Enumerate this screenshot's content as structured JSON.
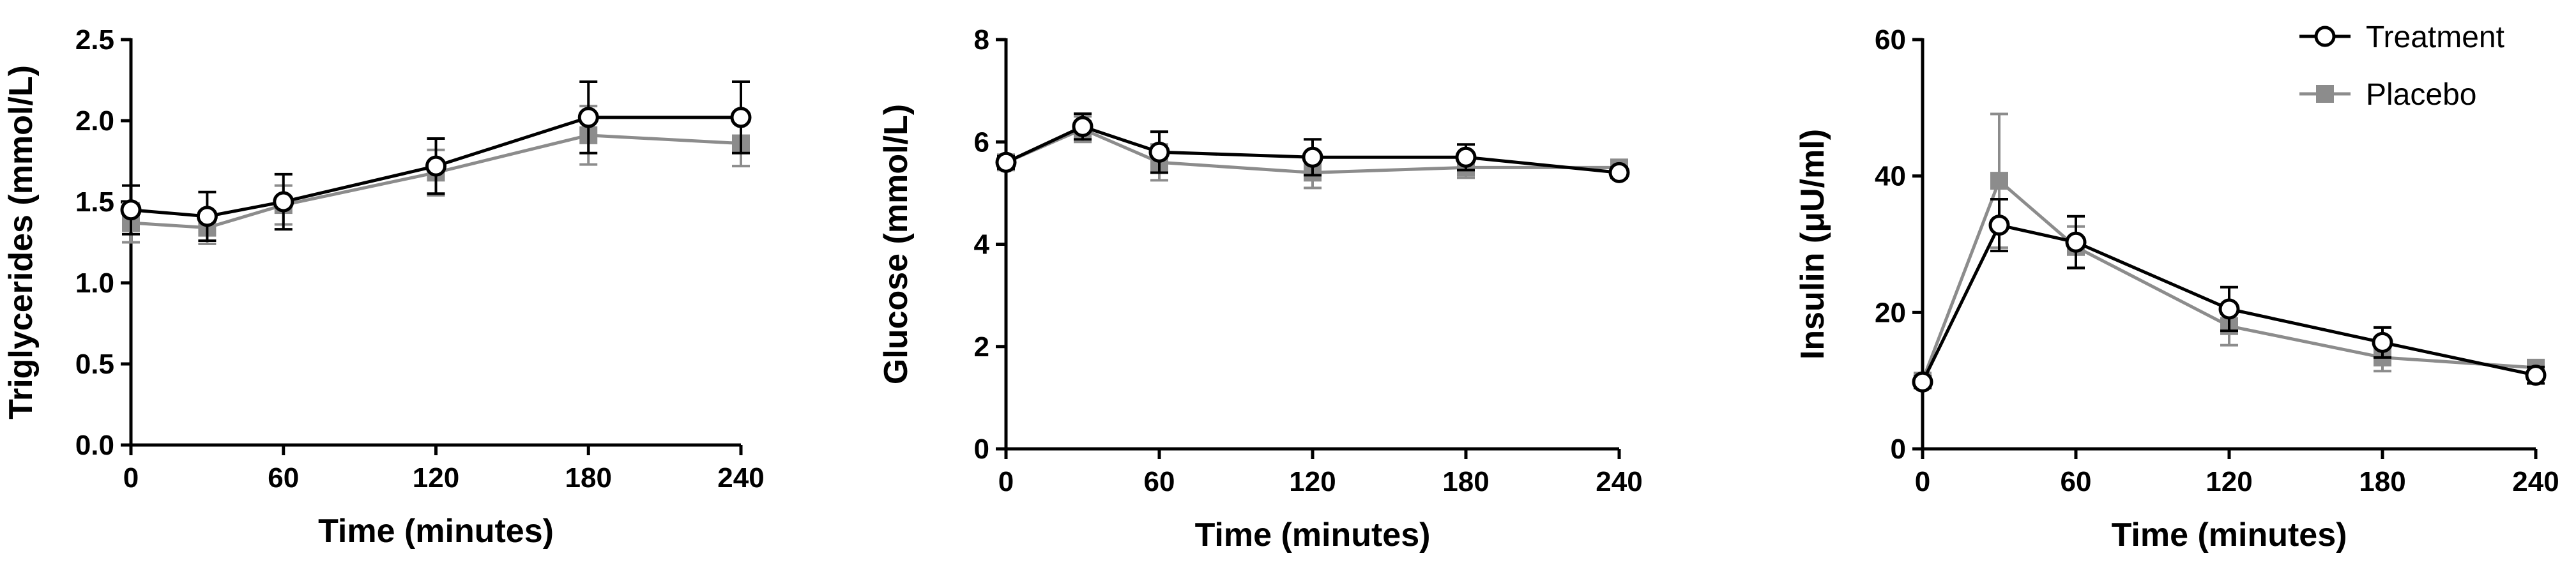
{
  "figure": {
    "colors": {
      "treatment": "#000000",
      "placebo": "#8c8c8c"
    },
    "legend": [
      {
        "name": "Treatment",
        "marker": "open-circle",
        "color": "#000000"
      },
      {
        "name": "Placebo",
        "marker": "filled-square",
        "color": "#8c8c8c"
      }
    ]
  },
  "chart_data": [
    {
      "type": "line",
      "xlabel": "Time (minutes)",
      "ylabel": "Triglycerides (mmol/L)",
      "x": [
        0,
        30,
        60,
        120,
        180,
        240
      ],
      "xticks": [
        "0",
        "60",
        "120",
        "180",
        "240"
      ],
      "xlim": [
        0,
        240
      ],
      "ylim": [
        0,
        2.5
      ],
      "yticks": [
        "0.0",
        "0.5",
        "1.0",
        "1.5",
        "2.0",
        "2.5"
      ],
      "series": [
        {
          "name": "Treatment",
          "values": [
            1.45,
            1.41,
            1.5,
            1.72,
            2.02,
            2.02
          ],
          "errors": [
            0.15,
            0.15,
            0.17,
            0.17,
            0.22,
            0.22
          ]
        },
        {
          "name": "Placebo",
          "values": [
            1.37,
            1.34,
            1.48,
            1.68,
            1.91,
            1.86
          ],
          "errors": [
            0.12,
            0.1,
            0.12,
            0.14,
            0.18,
            0.14
          ]
        }
      ]
    },
    {
      "type": "line",
      "xlabel": "Time (minutes)",
      "ylabel": "Glucose (mmol/L)",
      "x": [
        0,
        30,
        60,
        120,
        180,
        240
      ],
      "xticks": [
        "0",
        "60",
        "120",
        "180",
        "240"
      ],
      "xlim": [
        0,
        240
      ],
      "ylim": [
        0,
        8
      ],
      "yticks": [
        "0",
        "2",
        "4",
        "6",
        "8"
      ],
      "series": [
        {
          "name": "Treatment",
          "values": [
            5.6,
            6.3,
            5.8,
            5.7,
            5.7,
            5.4
          ],
          "errors": [
            0.12,
            0.25,
            0.4,
            0.35,
            0.25,
            0.1
          ]
        },
        {
          "name": "Placebo",
          "values": [
            5.6,
            6.25,
            5.6,
            5.4,
            5.5,
            5.5
          ],
          "errors": [
            0.12,
            0.25,
            0.35,
            0.3,
            0.2,
            0.1
          ]
        }
      ]
    },
    {
      "type": "line",
      "xlabel": "Time (minutes)",
      "ylabel": "Insulin (μU/ml)",
      "x": [
        0,
        30,
        60,
        120,
        180,
        240
      ],
      "xticks": [
        "0",
        "60",
        "120",
        "180",
        "240"
      ],
      "xlim": [
        0,
        240
      ],
      "ylim": [
        0,
        60
      ],
      "yticks": [
        "0",
        "20",
        "40",
        "60"
      ],
      "legend_position": "top-right",
      "series": [
        {
          "name": "Treatment",
          "values": [
            9.8,
            32.8,
            30.3,
            20.5,
            15.6,
            10.8
          ],
          "errors": [
            0.8,
            3.8,
            3.8,
            3.2,
            2.2,
            1.2
          ]
        },
        {
          "name": "Placebo",
          "values": [
            10.0,
            39.3,
            29.6,
            18.0,
            13.4,
            11.9
          ],
          "errors": [
            0.8,
            9.8,
            3.0,
            2.8,
            2.0,
            1.0
          ]
        }
      ]
    }
  ]
}
